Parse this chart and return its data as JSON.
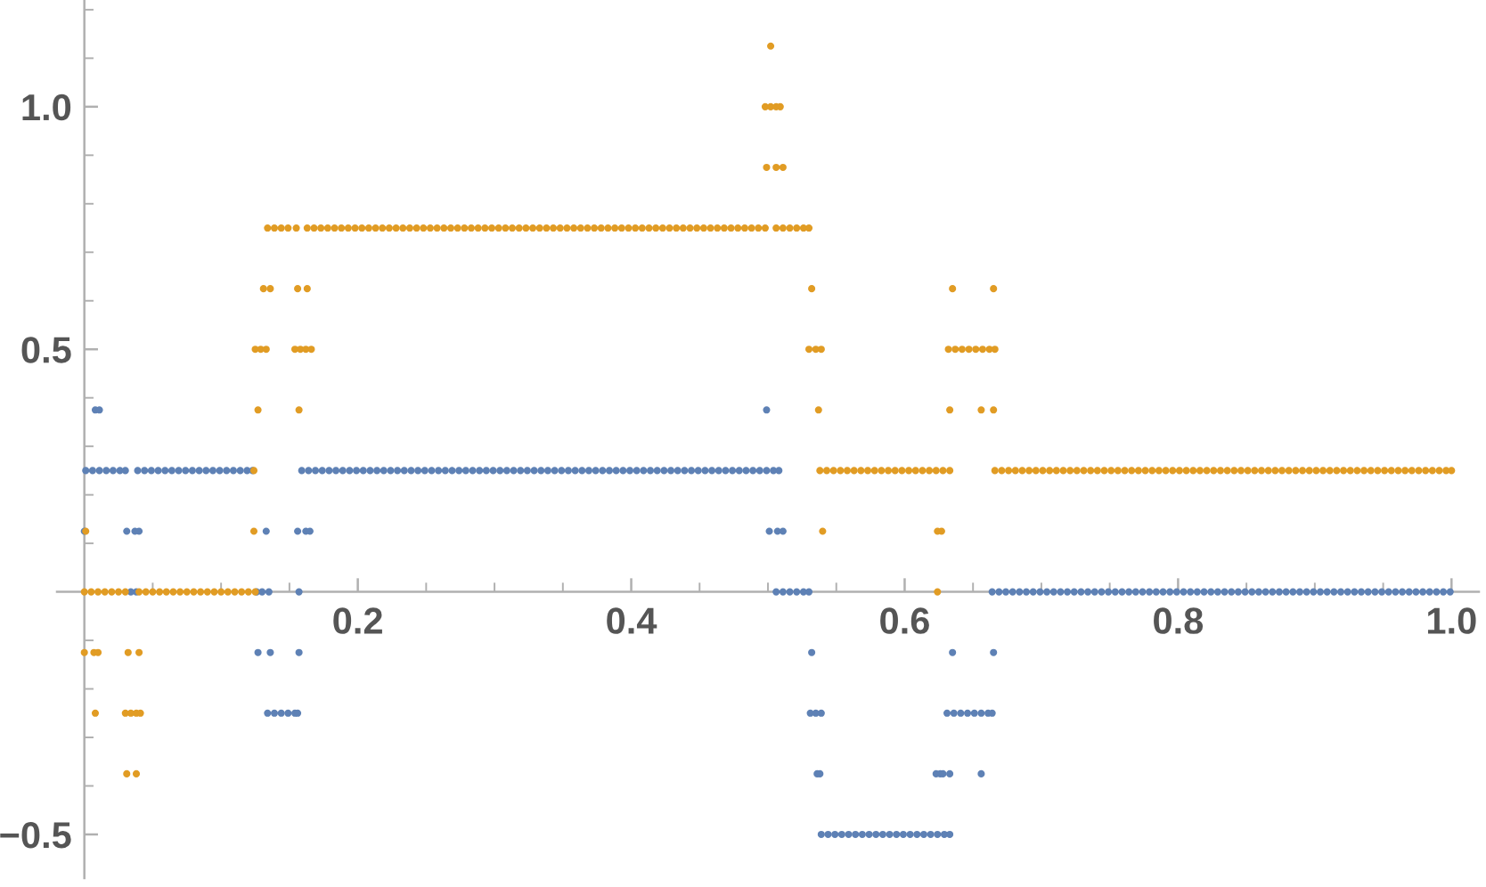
{
  "chart_data": {
    "type": "scatter",
    "marker": "circle",
    "xlim": [
      -0.02,
      1.02
    ],
    "ylim": [
      -0.59,
      1.22
    ],
    "xticks": [
      {
        "value": 0.05,
        "label": null
      },
      {
        "value": 0.1,
        "label": null
      },
      {
        "value": 0.15,
        "label": null
      },
      0.2,
      {
        "value": 0.25,
        "label": null
      },
      {
        "value": 0.3,
        "label": null
      },
      {
        "value": 0.35,
        "label": null
      },
      0.4,
      {
        "value": 0.45,
        "label": null
      },
      {
        "value": 0.5,
        "label": null
      },
      {
        "value": 0.55,
        "label": null
      },
      0.6,
      {
        "value": 0.65,
        "label": null
      },
      {
        "value": 0.7,
        "label": null
      },
      {
        "value": 0.75,
        "label": null
      },
      0.8,
      {
        "value": 0.85,
        "label": null
      },
      {
        "value": 0.9,
        "label": null
      },
      {
        "value": 0.95,
        "label": null
      },
      {
        "value": 1,
        "label": "1.0"
      }
    ],
    "yticks": [
      {
        "value": -0.5,
        "label": "−0.5"
      },
      {
        "value": -0.4,
        "label": null
      },
      {
        "value": -0.3,
        "label": null
      },
      {
        "value": -0.2,
        "label": null
      },
      {
        "value": -0.1,
        "label": null
      },
      {
        "value": 0.1,
        "label": null
      },
      {
        "value": 0.2,
        "label": null
      },
      {
        "value": 0.3,
        "label": null
      },
      {
        "value": 0.4,
        "label": null
      },
      0.5,
      {
        "value": 0.6,
        "label": null
      },
      {
        "value": 0.7,
        "label": null
      },
      {
        "value": 0.8,
        "label": null
      },
      {
        "value": 0.9,
        "label": null
      },
      {
        "value": 1,
        "label": "1.0"
      },
      {
        "value": 1.1,
        "label": null
      },
      {
        "value": 1.2,
        "label": null
      }
    ],
    "series": [
      {
        "color": "#5e81b5",
        "x": [
          0.008,
          0.011,
          0.499,
          0.001,
          0.006,
          0.011,
          0.016,
          0.021,
          0.026,
          0.03,
          0.039,
          0.044,
          0.049,
          0.054,
          0.059,
          0.064,
          0.069,
          0.074,
          0.079,
          0.084,
          0.089,
          0.094,
          0.099,
          0.104,
          0.109,
          0.114,
          0.119,
          0.123,
          0.159,
          0.164,
          0.169,
          0.174,
          0.179,
          0.184,
          0.189,
          0.194,
          0.199,
          0.204,
          0.209,
          0.214,
          0.219,
          0.224,
          0.229,
          0.234,
          0.239,
          0.244,
          0.249,
          0.254,
          0.259,
          0.264,
          0.269,
          0.274,
          0.279,
          0.284,
          0.289,
          0.294,
          0.299,
          0.304,
          0.309,
          0.314,
          0.319,
          0.324,
          0.329,
          0.334,
          0.339,
          0.344,
          0.349,
          0.354,
          0.359,
          0.364,
          0.369,
          0.374,
          0.379,
          0.384,
          0.389,
          0.394,
          0.399,
          0.404,
          0.409,
          0.414,
          0.419,
          0.424,
          0.429,
          0.434,
          0.439,
          0.444,
          0.449,
          0.454,
          0.459,
          0.464,
          0.469,
          0.474,
          0.479,
          0.484,
          0.489,
          0.494,
          0.499,
          0.504,
          0.508,
          0,
          0.031,
          0.037,
          0.04,
          0.133,
          0.156,
          0.162,
          0.165,
          0.501,
          0.507,
          0.511,
          0.034,
          0.038,
          0.126,
          0.13,
          0.135,
          0.157,
          0.506,
          0.511,
          0.516,
          0.521,
          0.526,
          0.53,
          0.664,
          0.669,
          0.674,
          0.679,
          0.684,
          0.689,
          0.694,
          0.699,
          0.704,
          0.709,
          0.714,
          0.719,
          0.724,
          0.729,
          0.734,
          0.739,
          0.744,
          0.749,
          0.754,
          0.759,
          0.764,
          0.769,
          0.774,
          0.779,
          0.784,
          0.789,
          0.794,
          0.799,
          0.804,
          0.809,
          0.814,
          0.819,
          0.824,
          0.829,
          0.834,
          0.839,
          0.844,
          0.849,
          0.854,
          0.859,
          0.864,
          0.869,
          0.874,
          0.879,
          0.884,
          0.889,
          0.894,
          0.899,
          0.904,
          0.909,
          0.914,
          0.919,
          0.924,
          0.929,
          0.934,
          0.939,
          0.944,
          0.949,
          0.954,
          0.959,
          0.964,
          0.969,
          0.974,
          0.979,
          0.984,
          0.989,
          0.994,
          0.999,
          0.127,
          0.136,
          0.157,
          0.532,
          0.635,
          0.665,
          0.134,
          0.139,
          0.144,
          0.149,
          0.154,
          0.156,
          0.531,
          0.535,
          0.539,
          0.631,
          0.636,
          0.641,
          0.646,
          0.651,
          0.656,
          0.661,
          0.664,
          0.536,
          0.538,
          0.623,
          0.626,
          0.628,
          0.633,
          0.656,
          0.539,
          0.544,
          0.549,
          0.554,
          0.559,
          0.564,
          0.569,
          0.574,
          0.579,
          0.584,
          0.589,
          0.594,
          0.599,
          0.604,
          0.609,
          0.614,
          0.619,
          0.624,
          0.629,
          0.633
        ],
        "values": [
          0.375,
          0.375,
          0.375,
          0.25,
          0.25,
          0.25,
          0.25,
          0.25,
          0.25,
          0.25,
          0.25,
          0.25,
          0.25,
          0.25,
          0.25,
          0.25,
          0.25,
          0.25,
          0.25,
          0.25,
          0.25,
          0.25,
          0.25,
          0.25,
          0.25,
          0.25,
          0.25,
          0.25,
          0.25,
          0.25,
          0.25,
          0.25,
          0.25,
          0.25,
          0.25,
          0.25,
          0.25,
          0.25,
          0.25,
          0.25,
          0.25,
          0.25,
          0.25,
          0.25,
          0.25,
          0.25,
          0.25,
          0.25,
          0.25,
          0.25,
          0.25,
          0.25,
          0.25,
          0.25,
          0.25,
          0.25,
          0.25,
          0.25,
          0.25,
          0.25,
          0.25,
          0.25,
          0.25,
          0.25,
          0.25,
          0.25,
          0.25,
          0.25,
          0.25,
          0.25,
          0.25,
          0.25,
          0.25,
          0.25,
          0.25,
          0.25,
          0.25,
          0.25,
          0.25,
          0.25,
          0.25,
          0.25,
          0.25,
          0.25,
          0.25,
          0.25,
          0.25,
          0.25,
          0.25,
          0.25,
          0.25,
          0.25,
          0.25,
          0.25,
          0.25,
          0.25,
          0.25,
          0.25,
          0.25,
          0.125,
          0.125,
          0.125,
          0.125,
          0.125,
          0.125,
          0.125,
          0.125,
          0.125,
          0.125,
          0.125,
          0,
          0,
          0,
          0,
          0,
          0,
          0,
          0,
          0,
          0,
          0,
          0,
          0,
          0,
          0,
          0,
          0,
          0,
          0,
          0,
          0,
          0,
          0,
          0,
          0,
          0,
          0,
          0,
          0,
          0,
          0,
          0,
          0,
          0,
          0,
          0,
          0,
          0,
          0,
          0,
          0,
          0,
          0,
          0,
          0,
          0,
          0,
          0,
          0,
          0,
          0,
          0,
          0,
          0,
          0,
          0,
          0,
          0,
          0,
          0,
          0,
          0,
          0,
          0,
          0,
          0,
          0,
          0,
          0,
          0,
          0,
          0,
          0,
          0,
          0,
          0,
          0,
          0,
          0,
          0,
          -0.125,
          -0.125,
          -0.125,
          -0.125,
          -0.125,
          -0.125,
          -0.25,
          -0.25,
          -0.25,
          -0.25,
          -0.25,
          -0.25,
          -0.25,
          -0.25,
          -0.25,
          -0.25,
          -0.25,
          -0.25,
          -0.25,
          -0.25,
          -0.25,
          -0.25,
          -0.25,
          -0.375,
          -0.375,
          -0.375,
          -0.375,
          -0.375,
          -0.375,
          -0.375,
          -0.5,
          -0.5,
          -0.5,
          -0.5,
          -0.5,
          -0.5,
          -0.5,
          -0.5,
          -0.5,
          -0.5,
          -0.5,
          -0.5,
          -0.5,
          -0.5,
          -0.5,
          -0.5,
          -0.5,
          -0.5,
          -0.5,
          -0.5
        ]
      },
      {
        "color": "#e19c24",
        "x": [
          0.502,
          0.498,
          0.502,
          0.506,
          0.509,
          0.499,
          0.506,
          0.511,
          0.134,
          0.139,
          0.144,
          0.149,
          0.155,
          0.163,
          0.168,
          0.173,
          0.178,
          0.183,
          0.188,
          0.193,
          0.198,
          0.203,
          0.208,
          0.213,
          0.218,
          0.223,
          0.228,
          0.233,
          0.238,
          0.243,
          0.248,
          0.253,
          0.258,
          0.263,
          0.268,
          0.273,
          0.278,
          0.283,
          0.288,
          0.293,
          0.298,
          0.303,
          0.308,
          0.313,
          0.318,
          0.323,
          0.328,
          0.333,
          0.338,
          0.343,
          0.348,
          0.353,
          0.358,
          0.363,
          0.368,
          0.373,
          0.378,
          0.383,
          0.388,
          0.393,
          0.398,
          0.403,
          0.408,
          0.413,
          0.418,
          0.423,
          0.428,
          0.433,
          0.438,
          0.443,
          0.448,
          0.453,
          0.458,
          0.463,
          0.468,
          0.473,
          0.478,
          0.483,
          0.488,
          0.493,
          0.498,
          0.506,
          0.511,
          0.516,
          0.521,
          0.526,
          0.53,
          0.131,
          0.136,
          0.156,
          0.163,
          0.532,
          0.635,
          0.665,
          0.125,
          0.129,
          0.133,
          0.154,
          0.158,
          0.162,
          0.166,
          0.53,
          0.535,
          0.539,
          0.632,
          0.637,
          0.642,
          0.647,
          0.652,
          0.657,
          0.662,
          0.666,
          0.127,
          0.157,
          0.537,
          0.633,
          0.656,
          0.665,
          0.124,
          0.538,
          0.543,
          0.548,
          0.553,
          0.558,
          0.563,
          0.568,
          0.573,
          0.578,
          0.583,
          0.588,
          0.593,
          0.598,
          0.603,
          0.608,
          0.613,
          0.618,
          0.623,
          0.628,
          0.633,
          0.666,
          0.671,
          0.676,
          0.681,
          0.686,
          0.691,
          0.696,
          0.701,
          0.706,
          0.711,
          0.716,
          0.721,
          0.726,
          0.731,
          0.736,
          0.741,
          0.746,
          0.751,
          0.756,
          0.761,
          0.766,
          0.771,
          0.776,
          0.781,
          0.786,
          0.791,
          0.796,
          0.801,
          0.806,
          0.811,
          0.816,
          0.821,
          0.826,
          0.831,
          0.836,
          0.841,
          0.846,
          0.851,
          0.856,
          0.861,
          0.866,
          0.871,
          0.876,
          0.881,
          0.886,
          0.891,
          0.896,
          0.901,
          0.906,
          0.911,
          0.916,
          0.921,
          0.926,
          0.931,
          0.936,
          0.941,
          0.946,
          0.951,
          0.956,
          0.961,
          0.966,
          0.971,
          0.976,
          0.981,
          0.986,
          0.991,
          0.996,
          1.0,
          0.001,
          0.124,
          0.54,
          0.624,
          0.627,
          0,
          0.005,
          0.01,
          0.015,
          0.02,
          0.025,
          0.03,
          0.04,
          0.045,
          0.05,
          0.055,
          0.06,
          0.065,
          0.07,
          0.075,
          0.08,
          0.085,
          0.09,
          0.095,
          0.1,
          0.105,
          0.11,
          0.115,
          0.12,
          0.125,
          0.624,
          0,
          0.007,
          0.01,
          0.032,
          0.04,
          0.008,
          0.03,
          0.034,
          0.038,
          0.041,
          0.031,
          0.038
        ],
        "values": [
          1.125,
          1,
          1,
          1,
          1,
          0.875,
          0.875,
          0.875,
          0.75,
          0.75,
          0.75,
          0.75,
          0.75,
          0.75,
          0.75,
          0.75,
          0.75,
          0.75,
          0.75,
          0.75,
          0.75,
          0.75,
          0.75,
          0.75,
          0.75,
          0.75,
          0.75,
          0.75,
          0.75,
          0.75,
          0.75,
          0.75,
          0.75,
          0.75,
          0.75,
          0.75,
          0.75,
          0.75,
          0.75,
          0.75,
          0.75,
          0.75,
          0.75,
          0.75,
          0.75,
          0.75,
          0.75,
          0.75,
          0.75,
          0.75,
          0.75,
          0.75,
          0.75,
          0.75,
          0.75,
          0.75,
          0.75,
          0.75,
          0.75,
          0.75,
          0.75,
          0.75,
          0.75,
          0.75,
          0.75,
          0.75,
          0.75,
          0.75,
          0.75,
          0.75,
          0.75,
          0.75,
          0.75,
          0.75,
          0.75,
          0.75,
          0.75,
          0.75,
          0.75,
          0.75,
          0.75,
          0.75,
          0.75,
          0.75,
          0.75,
          0.75,
          0.75,
          0.625,
          0.625,
          0.625,
          0.625,
          0.625,
          0.625,
          0.625,
          0.5,
          0.5,
          0.5,
          0.5,
          0.5,
          0.5,
          0.5,
          0.5,
          0.5,
          0.5,
          0.5,
          0.5,
          0.5,
          0.5,
          0.5,
          0.5,
          0.5,
          0.5,
          0.375,
          0.375,
          0.375,
          0.375,
          0.375,
          0.375,
          0.25,
          0.25,
          0.25,
          0.25,
          0.25,
          0.25,
          0.25,
          0.25,
          0.25,
          0.25,
          0.25,
          0.25,
          0.25,
          0.25,
          0.25,
          0.25,
          0.25,
          0.25,
          0.25,
          0.25,
          0.25,
          0.25,
          0.25,
          0.25,
          0.25,
          0.25,
          0.25,
          0.25,
          0.25,
          0.25,
          0.25,
          0.25,
          0.25,
          0.25,
          0.25,
          0.25,
          0.25,
          0.25,
          0.25,
          0.25,
          0.25,
          0.25,
          0.25,
          0.25,
          0.25,
          0.25,
          0.25,
          0.25,
          0.25,
          0.25,
          0.25,
          0.25,
          0.25,
          0.25,
          0.25,
          0.25,
          0.25,
          0.25,
          0.25,
          0.25,
          0.25,
          0.25,
          0.25,
          0.25,
          0.25,
          0.25,
          0.25,
          0.25,
          0.25,
          0.25,
          0.25,
          0.25,
          0.25,
          0.25,
          0.25,
          0.25,
          0.25,
          0.25,
          0.25,
          0.25,
          0.25,
          0.25,
          0.25,
          0.25,
          0.25,
          0.25,
          0.25,
          0.25,
          0.25,
          0.125,
          0.125,
          0.125,
          0.125,
          0.125,
          0,
          0,
          0,
          0,
          0,
          0,
          0,
          0,
          0,
          0,
          0,
          0,
          0,
          0,
          0,
          0,
          0,
          0,
          0,
          0,
          0,
          0,
          0,
          0,
          0,
          0,
          -0.125,
          -0.125,
          -0.125,
          -0.125,
          -0.125,
          -0.25,
          -0.25,
          -0.25,
          -0.25,
          -0.25,
          -0.375,
          -0.375
        ]
      }
    ]
  }
}
